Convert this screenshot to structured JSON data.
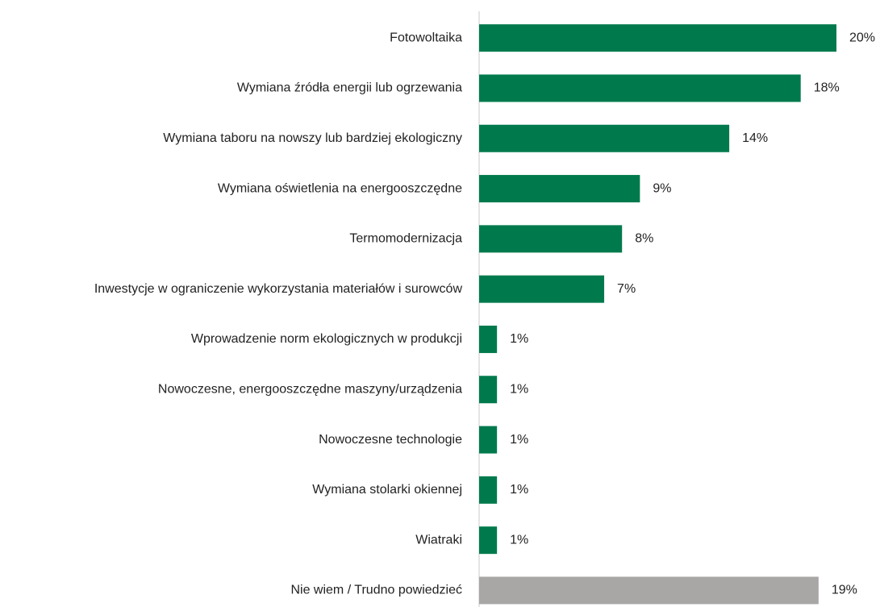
{
  "chart_data": {
    "type": "bar",
    "orientation": "horizontal",
    "categories": [
      "Fotowoltaika",
      "Wymiana źródła energii lub ogrzewania",
      "Wymiana taboru na nowszy lub bardziej ekologiczny",
      "Wymiana oświetlenia na energooszczędne",
      "Termomodernizacja",
      "Inwestycje w ograniczenie wykorzystania materiałów i surowców",
      "Wprowadzenie norm ekologicznych w produkcji",
      "Nowoczesne, energooszczędne maszyny/urządzenia",
      "Nowoczesne technologie",
      "Wymiana stolarki okiennej",
      "Wiatraki",
      "Nie wiem / Trudno powiedzieć"
    ],
    "values": [
      20,
      18,
      14,
      9,
      8,
      7,
      1,
      1,
      1,
      1,
      1,
      19
    ],
    "value_labels": [
      "20%",
      "18%",
      "14%",
      "9%",
      "8%",
      "7%",
      "1%",
      "1%",
      "1%",
      "1%",
      "1%",
      "19%"
    ],
    "colors": [
      "#007a4d",
      "#007a4d",
      "#007a4d",
      "#007a4d",
      "#007a4d",
      "#007a4d",
      "#007a4d",
      "#007a4d",
      "#007a4d",
      "#007a4d",
      "#007a4d",
      "#a9a7a6"
    ]
  }
}
